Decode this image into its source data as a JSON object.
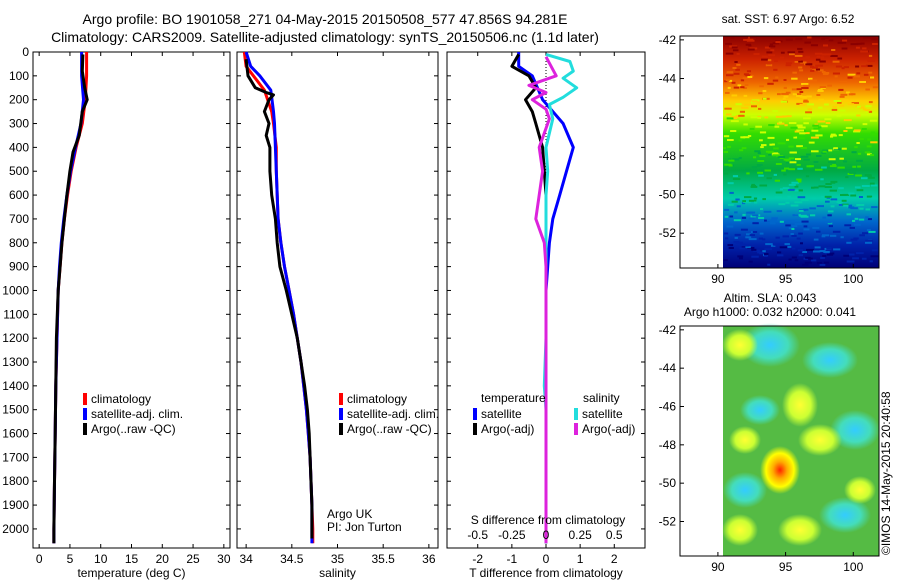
{
  "figure": {
    "title_line1": "Argo profile: BO 1901058_271 04-May-2015 20150508_577 47.856S 94.281E",
    "title_line2": "Climatology: CARS2009. Satellite-adjusted climatology: synTS_20150506.nc (1.1d later)",
    "imos_stamp": "©IMOS 14-May-2015 20:40:58",
    "colors": {
      "climatology": "#ff0000",
      "satellite": "#0000ff",
      "argo": "#000000",
      "s_satellite": "#22dddd",
      "s_argo": "#dd22dd"
    }
  },
  "chart_data": [
    {
      "type": "line",
      "name": "temperature",
      "xlabel": "temperature (deg C)",
      "ylim": [
        0,
        2080
      ],
      "xlim": [
        -1,
        31
      ],
      "xticks": [
        "0",
        "5",
        "10",
        "15",
        "20",
        "25",
        "30"
      ],
      "yticks": [
        "0",
        "100",
        "200",
        "300",
        "400",
        "500",
        "600",
        "700",
        "800",
        "900",
        "1000",
        "1100",
        "1200",
        "1300",
        "1400",
        "1500",
        "1600",
        "1700",
        "1800",
        "1900",
        "2000"
      ],
      "legend": [
        "climatology",
        "satellite-adj. clim.",
        "Argo(..raw -QC)"
      ],
      "series": [
        {
          "name": "climatology",
          "color": "#ff0000",
          "points": [
            [
              7.7,
              0
            ],
            [
              7.7,
              100
            ],
            [
              7.5,
              200
            ],
            [
              7.0,
              300
            ],
            [
              6.0,
              400
            ],
            [
              5.2,
              500
            ],
            [
              4.6,
              600
            ],
            [
              4.1,
              700
            ],
            [
              3.7,
              800
            ],
            [
              3.4,
              900
            ],
            [
              3.1,
              1000
            ],
            [
              2.9,
              1200
            ],
            [
              2.7,
              1400
            ],
            [
              2.6,
              1600
            ],
            [
              2.5,
              1800
            ],
            [
              2.4,
              2000
            ],
            [
              2.4,
              2060
            ]
          ]
        },
        {
          "name": "satellite-adj. clim.",
          "color": "#0000ff",
          "points": [
            [
              6.9,
              0
            ],
            [
              6.9,
              100
            ],
            [
              7.2,
              200
            ],
            [
              6.8,
              300
            ],
            [
              5.9,
              400
            ],
            [
              5.1,
              500
            ],
            [
              4.5,
              600
            ],
            [
              4.0,
              700
            ],
            [
              3.6,
              800
            ],
            [
              3.3,
              900
            ],
            [
              3.1,
              1000
            ],
            [
              2.9,
              1200
            ],
            [
              2.7,
              1400
            ],
            [
              2.6,
              1600
            ],
            [
              2.5,
              1800
            ],
            [
              2.4,
              2000
            ],
            [
              2.4,
              2060
            ]
          ]
        },
        {
          "name": "Argo(..raw -QC)",
          "color": "#000000",
          "points": [
            [
              7.1,
              10
            ],
            [
              7.0,
              80
            ],
            [
              7.4,
              150
            ],
            [
              7.8,
              200
            ],
            [
              7.0,
              250
            ],
            [
              6.5,
              350
            ],
            [
              5.5,
              420
            ],
            [
              5.0,
              500
            ],
            [
              4.5,
              600
            ],
            [
              4.1,
              700
            ],
            [
              3.7,
              800
            ],
            [
              3.4,
              900
            ],
            [
              3.1,
              1000
            ],
            [
              2.8,
              1200
            ],
            [
              2.7,
              1400
            ],
            [
              2.6,
              1600
            ],
            [
              2.5,
              1800
            ],
            [
              2.4,
              2000
            ],
            [
              2.4,
              2060
            ]
          ]
        }
      ]
    },
    {
      "type": "line",
      "name": "salinity",
      "xlabel": "salinity",
      "ylim": [
        0,
        2080
      ],
      "xlim": [
        33.9,
        36.1
      ],
      "xticks": [
        "34",
        "34.5",
        "35",
        "35.5",
        "36"
      ],
      "legend": [
        "climatology",
        "satellite-adj. clim.",
        "Argo(..raw -QC)"
      ],
      "annotation": [
        "Argo UK",
        "PI: Jon Turton"
      ],
      "series": [
        {
          "name": "climatology",
          "color": "#ff0000",
          "points": [
            [
              33.98,
              0
            ],
            [
              34.0,
              60
            ],
            [
              34.08,
              100
            ],
            [
              34.2,
              160
            ],
            [
              34.28,
              250
            ],
            [
              34.3,
              300
            ],
            [
              34.33,
              400
            ],
            [
              34.33,
              500
            ],
            [
              34.34,
              600
            ],
            [
              34.35,
              700
            ],
            [
              34.38,
              800
            ],
            [
              34.42,
              900
            ],
            [
              34.47,
              1000
            ],
            [
              34.52,
              1100
            ],
            [
              34.56,
              1200
            ],
            [
              34.6,
              1300
            ],
            [
              34.63,
              1400
            ],
            [
              34.66,
              1500
            ],
            [
              34.68,
              1600
            ],
            [
              34.7,
              1700
            ],
            [
              34.71,
              1800
            ],
            [
              34.72,
              1900
            ],
            [
              34.73,
              2000
            ],
            [
              34.73,
              2060
            ]
          ]
        },
        {
          "name": "satellite-adj. clim.",
          "color": "#0000ff",
          "points": [
            [
              34.0,
              0
            ],
            [
              34.05,
              60
            ],
            [
              34.15,
              100
            ],
            [
              34.27,
              160
            ],
            [
              34.3,
              250
            ],
            [
              34.31,
              300
            ],
            [
              34.32,
              400
            ],
            [
              34.33,
              500
            ],
            [
              34.34,
              600
            ],
            [
              34.35,
              700
            ],
            [
              34.38,
              800
            ],
            [
              34.42,
              900
            ],
            [
              34.47,
              1000
            ],
            [
              34.52,
              1100
            ],
            [
              34.56,
              1200
            ],
            [
              34.6,
              1300
            ],
            [
              34.63,
              1400
            ],
            [
              34.66,
              1500
            ],
            [
              34.68,
              1600
            ],
            [
              34.7,
              1700
            ],
            [
              34.71,
              1800
            ],
            [
              34.72,
              1900
            ],
            [
              34.72,
              2000
            ],
            [
              34.72,
              2060
            ]
          ]
        },
        {
          "name": "Argo(..raw -QC)",
          "color": "#000000",
          "points": [
            [
              34.0,
              30
            ],
            [
              34.02,
              100
            ],
            [
              34.1,
              150
            ],
            [
              34.22,
              170
            ],
            [
              34.3,
              180
            ],
            [
              34.25,
              200
            ],
            [
              34.2,
              250
            ],
            [
              34.25,
              300
            ],
            [
              34.22,
              350
            ],
            [
              34.26,
              400
            ],
            [
              34.26,
              500
            ],
            [
              34.28,
              600
            ],
            [
              34.32,
              700
            ],
            [
              34.34,
              800
            ],
            [
              34.37,
              900
            ],
            [
              34.44,
              1000
            ],
            [
              34.5,
              1100
            ],
            [
              34.56,
              1200
            ],
            [
              34.6,
              1300
            ],
            [
              34.64,
              1400
            ],
            [
              34.67,
              1500
            ],
            [
              34.69,
              1600
            ],
            [
              34.7,
              1700
            ],
            [
              34.71,
              1800
            ],
            [
              34.72,
              1900
            ],
            [
              34.72,
              2000
            ],
            [
              34.72,
              2040
            ]
          ]
        }
      ]
    },
    {
      "type": "line",
      "name": "difference",
      "xlabel": "T difference from climatology",
      "top_axis_label": "S difference from climatology",
      "ylim": [
        0,
        2080
      ],
      "xlim": [
        -2.9,
        2.9
      ],
      "xticks": [
        "-2",
        "-1",
        "0",
        "1",
        "2"
      ],
      "top_ticks": [
        "-0.5",
        "-0.25",
        "0",
        "0.25",
        "0.5"
      ],
      "legend_titles": [
        "temperature",
        "salinity"
      ],
      "legend": [
        "satellite",
        "Argo(-adj)",
        "satellite",
        "Argo(-adj)"
      ],
      "series": [
        {
          "name": "temperature satellite",
          "color": "#0000ff",
          "points": [
            [
              -0.8,
              0
            ],
            [
              -0.8,
              60
            ],
            [
              -0.4,
              100
            ],
            [
              -0.1,
              200
            ],
            [
              0.5,
              300
            ],
            [
              0.8,
              400
            ],
            [
              0.6,
              500
            ],
            [
              0.4,
              600
            ],
            [
              0.2,
              700
            ],
            [
              0.1,
              800
            ],
            [
              0.05,
              900
            ],
            [
              0.0,
              1000
            ],
            [
              0.0,
              1500
            ],
            [
              0.0,
              2060
            ]
          ]
        },
        {
          "name": "temperature Argo(-adj)",
          "color": "#000000",
          "points": [
            [
              -0.8,
              10
            ],
            [
              -1.0,
              60
            ],
            [
              -0.5,
              100
            ],
            [
              -0.3,
              150
            ],
            [
              -0.6,
              200
            ],
            [
              -0.4,
              250
            ],
            [
              -0.3,
              300
            ],
            [
              -0.1,
              400
            ],
            [
              -0.05,
              500
            ],
            [
              0.0,
              600
            ],
            [
              0.0,
              800
            ],
            [
              0.0,
              1000
            ],
            [
              0.0,
              1500
            ],
            [
              0.0,
              2060
            ]
          ]
        },
        {
          "name": "salinity satellite",
          "color": "#22dddd",
          "points": [
            [
              0.0,
              10
            ],
            [
              0.7,
              40
            ],
            [
              0.8,
              80
            ],
            [
              0.5,
              110
            ],
            [
              0.9,
              150
            ],
            [
              0.5,
              190
            ],
            [
              0.1,
              220
            ],
            [
              0.2,
              280
            ],
            [
              0.0,
              400
            ],
            [
              0.05,
              500
            ],
            [
              0.0,
              600
            ],
            [
              0.0,
              800
            ],
            [
              0.0,
              1000
            ],
            [
              0.0,
              1200
            ],
            [
              -0.05,
              1400
            ],
            [
              0.0,
              1500
            ],
            [
              0.0,
              1700
            ],
            [
              0.0,
              2060
            ]
          ]
        },
        {
          "name": "salinity Argo(-adj)",
          "color": "#dd22dd",
          "points": [
            [
              0.0,
              20
            ],
            [
              0.3,
              100
            ],
            [
              -0.1,
              120
            ],
            [
              -0.5,
              140
            ],
            [
              0.0,
              170
            ],
            [
              -0.4,
              200
            ],
            [
              0.0,
              240
            ],
            [
              0.1,
              280
            ],
            [
              -0.2,
              400
            ],
            [
              -0.1,
              500
            ],
            [
              -0.2,
              600
            ],
            [
              -0.3,
              700
            ],
            [
              -0.05,
              800
            ],
            [
              0.0,
              900
            ],
            [
              0.0,
              1000
            ],
            [
              0.0,
              1100
            ],
            [
              0.0,
              2060
            ]
          ]
        }
      ]
    },
    {
      "type": "heatmap",
      "name": "sst_map",
      "title": "sat. SST: 6.97 Argo: 6.52",
      "xticks": [
        "90",
        "95",
        "100"
      ],
      "yticks": [
        "-42",
        "-44",
        "-46",
        "-48",
        "-50",
        "-52"
      ],
      "colors": [
        "#8b0000",
        "#cc2200",
        "#ee6600",
        "#ffcc00",
        "#ccff00",
        "#33dd00",
        "#00aa44",
        "#00ccaa",
        "#0066cc",
        "#0022aa",
        "#000077"
      ]
    },
    {
      "type": "heatmap",
      "name": "sla_map",
      "title_line1": "Altim. SLA: 0.043",
      "title_line2": "Argo h1000: 0.032 h2000: 0.041",
      "xticks": [
        "90",
        "95",
        "100"
      ],
      "yticks": [
        "-42",
        "-44",
        "-46",
        "-48",
        "-50",
        "-52"
      ]
    }
  ]
}
